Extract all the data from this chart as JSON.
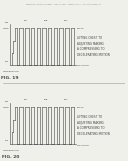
{
  "background": "#f0f0ea",
  "header_text": "Patent Application Publication    May 19, 2016   Sheet 11 of 20    US 2016/0135907 A1",
  "fig19_label": "FIG. 19",
  "fig20_label": "FIG. 20",
  "fig19_caption": "LIFTING CHEST TO\nADJUSTING MAKING\nA COMPRESSING TO\nDECELERATING MOTION",
  "fig20_caption": "LIFTING CHEST TO\nADJUSTING MAKING\nA COMPRESSING TO\nDECELERATING MOTION",
  "waveform_color": "#444444",
  "text_color": "#333333",
  "separator_color": "#999999",
  "n_pulses_19": 10,
  "n_pulses_20": 10
}
